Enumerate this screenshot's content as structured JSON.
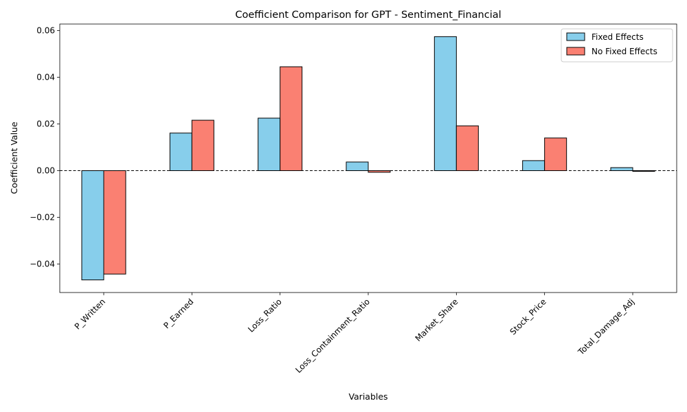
{
  "chart_data": {
    "type": "bar",
    "title": "Coefficient Comparison for GPT - Sentiment_Financial",
    "xlabel": "Variables",
    "ylabel": "Coefficient Value",
    "categories": [
      "P_Written",
      "P_Earned",
      "Loss_Ratio",
      "Loss_Containment_Ratio",
      "Market_Share",
      "Stock_Price",
      "Total_Damage_Adj"
    ],
    "series": [
      {
        "name": "Fixed Effects",
        "color": "#87ceeb",
        "values": [
          -0.0468,
          0.0161,
          0.0225,
          0.0037,
          0.0574,
          0.0043,
          0.0013
        ]
      },
      {
        "name": "No Fixed Effects",
        "color": "#fa8072",
        "values": [
          -0.0443,
          0.0216,
          0.0445,
          -0.0007,
          0.0192,
          0.014,
          -0.0003
        ]
      }
    ],
    "ylim": [
      -0.0522,
      0.0628
    ],
    "yticks": [
      -0.04,
      -0.02,
      0.0,
      0.02,
      0.04,
      0.06
    ],
    "ytick_labels": [
      "−0.04",
      "−0.02",
      "0.00",
      "0.02",
      "0.04",
      "0.06"
    ],
    "zero_line": "dashed",
    "grid": false,
    "legend_position": "top-right"
  }
}
